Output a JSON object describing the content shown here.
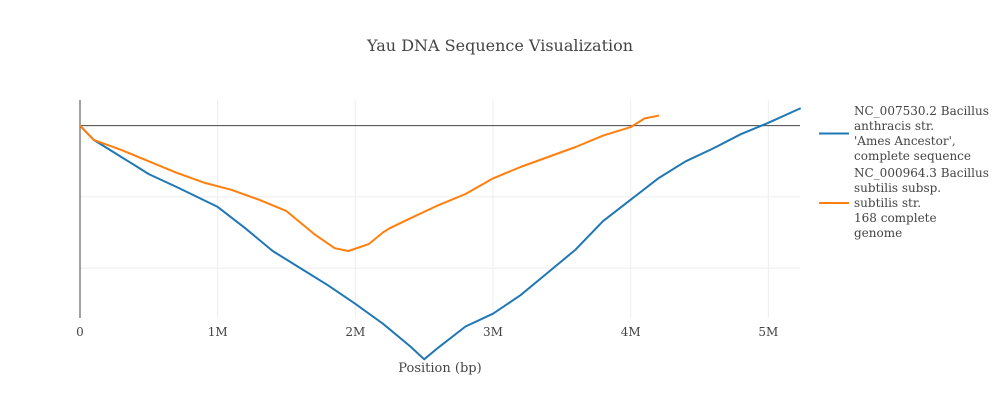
{
  "chart_data": {
    "type": "line",
    "title": "Yau DNA Sequence Visualization",
    "xlabel": "Position (bp)",
    "ylabel": "",
    "xlim": [
      0,
      5230000
    ],
    "ylim": [
      -1.35,
      0.18
    ],
    "x_ticks": [
      {
        "value": 0,
        "label": "0"
      },
      {
        "value": 1000000,
        "label": "1M"
      },
      {
        "value": 2000000,
        "label": "2M"
      },
      {
        "value": 3000000,
        "label": "3M"
      },
      {
        "value": 4000000,
        "label": "4M"
      },
      {
        "value": 5000000,
        "label": "5M"
      }
    ],
    "y_gridlines": [
      0,
      -0.5,
      -1.0,
      -1.5
    ],
    "grid": true,
    "legend_position": "right",
    "series": [
      {
        "name": "NC_007530.2 Bacillus anthracis str. 'Ames Ancestor', complete sequence",
        "legend_lines": [
          "NC_007530.2 Bacillus",
          "anthracis str.",
          "'Ames Ancestor',",
          "complete sequence"
        ],
        "color": "#1f77b4",
        "x": [
          0,
          100000,
          200000,
          300000,
          400000,
          500000,
          700000,
          1000000,
          1200000,
          1400000,
          1600000,
          1800000,
          2000000,
          2200000,
          2400000,
          2500000,
          2600000,
          2800000,
          3000000,
          3200000,
          3400000,
          3600000,
          3800000,
          4000000,
          4200000,
          4400000,
          4600000,
          4800000,
          5000000,
          5230000
        ],
        "values": [
          0,
          -0.1,
          -0.16,
          -0.22,
          -0.28,
          -0.34,
          -0.43,
          -0.57,
          -0.72,
          -0.88,
          -1.0,
          -1.12,
          -1.25,
          -1.39,
          -1.55,
          -1.64,
          -1.56,
          -1.41,
          -1.32,
          -1.19,
          -1.03,
          -0.87,
          -0.67,
          -0.52,
          -0.37,
          -0.25,
          -0.16,
          -0.06,
          0.02,
          0.12
        ]
      },
      {
        "name": "NC_000964.3 Bacillus subtilis subsp. subtilis str. 168 complete genome",
        "legend_lines": [
          "NC_000964.3 Bacillus",
          "subtilis subsp.",
          "subtilis str.",
          "168 complete",
          "genome"
        ],
        "color": "#ff7f0e",
        "x": [
          0,
          100000,
          300000,
          500000,
          700000,
          900000,
          1100000,
          1300000,
          1500000,
          1700000,
          1850000,
          1950000,
          2100000,
          2200000,
          2250000,
          2400000,
          2600000,
          2800000,
          3000000,
          3200000,
          3400000,
          3600000,
          3800000,
          4000000,
          4100000,
          4200000
        ],
        "values": [
          0,
          -0.1,
          -0.17,
          -0.25,
          -0.33,
          -0.4,
          -0.45,
          -0.52,
          -0.6,
          -0.76,
          -0.86,
          -0.88,
          -0.83,
          -0.75,
          -0.72,
          -0.65,
          -0.56,
          -0.48,
          -0.37,
          -0.29,
          -0.22,
          -0.15,
          -0.07,
          -0.01,
          0.05,
          0.07
        ]
      }
    ]
  }
}
